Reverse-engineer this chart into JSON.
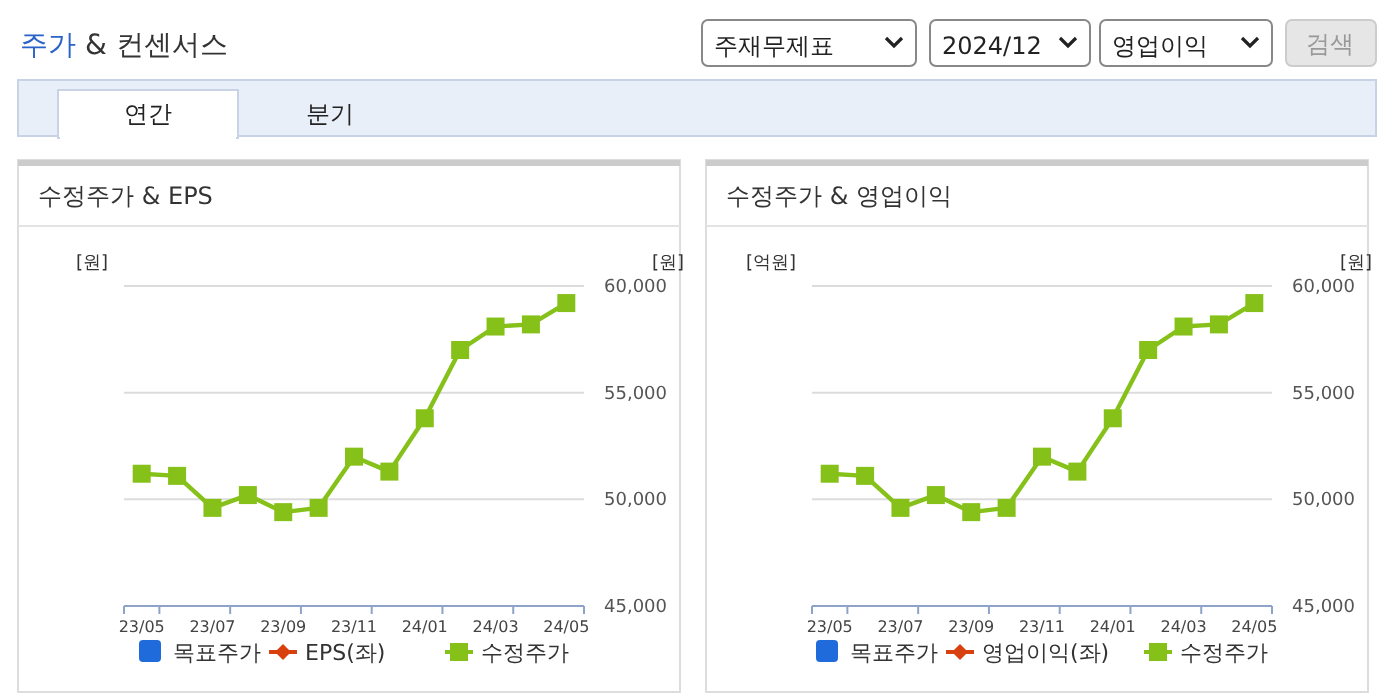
{
  "chart_data": [
    {
      "type": "other",
      "title": "주가 & 컨센서스",
      "annotations": [
        "주재무제표",
        "2024/12",
        "영업이익",
        "검색",
        "연간",
        "분기"
      ]
    },
    {
      "type": "line",
      "title": "수정주가 & EPS",
      "ylabel": "[원]",
      "y2label": "[원]",
      "categories": [
        "23/05",
        null,
        "23/07",
        null,
        "23/09",
        null,
        "23/11",
        null,
        "24/01",
        null,
        "24/03",
        null,
        "24/05"
      ],
      "series": [
        {
          "name": "목표주가",
          "type": "bar",
          "color": "#1f6bdc",
          "values": [
            null,
            null,
            null,
            null,
            null,
            null,
            null,
            null,
            null,
            null,
            null,
            null,
            null
          ],
          "axis": "y2"
        },
        {
          "name": "EPS(좌)",
          "type": "line",
          "marker": "diamond",
          "color": "#d9400f",
          "values": [
            null,
            null,
            null,
            null,
            null,
            null,
            null,
            null,
            null,
            null,
            null,
            null,
            null
          ]
        },
        {
          "name": "수정주가",
          "type": "line",
          "marker": "square",
          "color": "#86c11a",
          "axis": "y2",
          "values": [
            51200,
            51100,
            49600,
            50200,
            49400,
            49600,
            52000,
            51300,
            53800,
            57000,
            58100,
            58200,
            59200
          ]
        }
      ],
      "y2lim": [
        45000,
        60000
      ],
      "y2ticks": [
        {
          "value": 45000,
          "label": "45,000"
        },
        {
          "value": 50000,
          "label": "50,000"
        },
        {
          "value": 55000,
          "label": "55,000"
        },
        {
          "value": 60000,
          "label": "60,000"
        }
      ],
      "grid": "y",
      "legend": "bottom",
      "line_style": "solid"
    },
    {
      "type": "line",
      "title": "수정주가 & 영업이익",
      "ylabel": "[억원]",
      "y2label": "[원]",
      "categories": [
        "23/05",
        null,
        "23/07",
        null,
        "23/09",
        null,
        "23/11",
        null,
        "24/01",
        null,
        "24/03",
        null,
        "24/05"
      ],
      "series": [
        {
          "name": "목표주가",
          "type": "bar",
          "color": "#1f6bdc",
          "values": [
            null,
            null,
            null,
            null,
            null,
            null,
            null,
            null,
            null,
            null,
            null,
            null,
            null
          ],
          "axis": "y2"
        },
        {
          "name": "영업이익(좌)",
          "type": "line",
          "marker": "diamond",
          "color": "#d9400f",
          "values": [
            null,
            null,
            null,
            null,
            null,
            null,
            null,
            null,
            null,
            null,
            null,
            null,
            null
          ]
        },
        {
          "name": "수정주가",
          "type": "line",
          "marker": "square",
          "color": "#86c11a",
          "axis": "y2",
          "values": [
            51200,
            51100,
            49600,
            50200,
            49400,
            49600,
            52000,
            51300,
            53800,
            57000,
            58100,
            58200,
            59200
          ]
        }
      ],
      "y2lim": [
        45000,
        60000
      ],
      "y2ticks": [
        {
          "value": 45000,
          "label": "45,000"
        },
        {
          "value": 50000,
          "label": "50,000"
        },
        {
          "value": 55000,
          "label": "55,000"
        },
        {
          "value": 60000,
          "label": "60,000"
        }
      ],
      "grid": "y",
      "legend": "bottom",
      "line_style": "solid"
    }
  ]
}
